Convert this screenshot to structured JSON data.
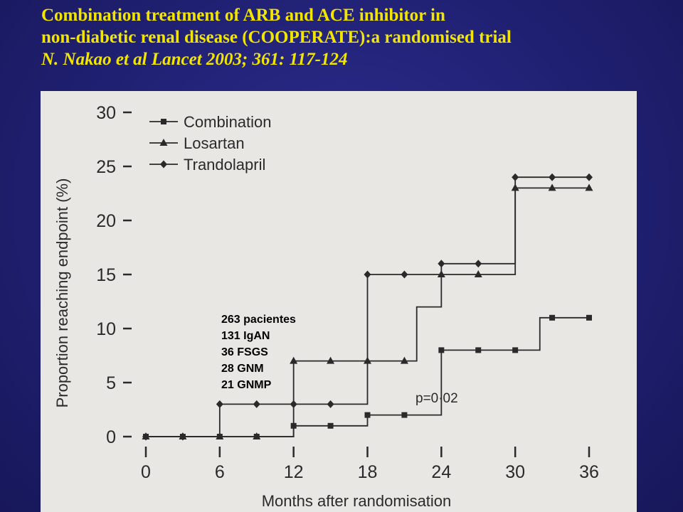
{
  "title": {
    "line1": "Combination treatment of ARB and ACE inhibitor in",
    "line2": "non-diabetic renal disease (COOPERATE):a randomised trial",
    "citation": "N. Nakao et al    Lancet 2003; 361: 117-124"
  },
  "annotation": {
    "lines": [
      "263 pacientes",
      "131 IgAN",
      "36 FSGS",
      "28 GNM",
      "21 GNMP"
    ]
  },
  "chart_data": {
    "type": "line",
    "step": true,
    "ylabel": "Proportion reaching endpoint (%)",
    "xlabel": "Months after randomisation",
    "xlim": [
      0,
      36
    ],
    "ylim": [
      0,
      30
    ],
    "xticks": [
      0,
      6,
      12,
      18,
      24,
      30,
      36
    ],
    "yticks": [
      0,
      5,
      10,
      15,
      20,
      25,
      30
    ],
    "xtick_labels": [
      "0",
      "6",
      "12",
      "18",
      "24",
      "30",
      "36"
    ],
    "ytick_labels": [
      "0",
      "5",
      "10",
      "15",
      "20",
      "25",
      "30"
    ],
    "annotation": "p=0·02",
    "legend_position": "top-left",
    "series": [
      {
        "name": "Combination",
        "marker": "square",
        "steps": [
          [
            0,
            0
          ],
          [
            6,
            0
          ],
          [
            12,
            1
          ],
          [
            18,
            2
          ],
          [
            20,
            2
          ],
          [
            24,
            8
          ],
          [
            30,
            8
          ],
          [
            32,
            11
          ],
          [
            36,
            11
          ]
        ],
        "marker_x": [
          0,
          3,
          6,
          9,
          12,
          15,
          18,
          21,
          24,
          27,
          30,
          33,
          36
        ]
      },
      {
        "name": "Losartan",
        "marker": "triangle",
        "steps": [
          [
            0,
            0
          ],
          [
            6,
            0
          ],
          [
            12,
            7
          ],
          [
            18,
            7
          ],
          [
            22,
            12
          ],
          [
            24,
            15
          ],
          [
            30,
            23
          ],
          [
            36,
            23
          ]
        ],
        "marker_x": [
          0,
          3,
          6,
          9,
          12,
          15,
          18,
          21,
          24,
          27,
          30,
          33,
          36
        ]
      },
      {
        "name": "Trandolapril",
        "marker": "diamond",
        "steps": [
          [
            0,
            0
          ],
          [
            6,
            3
          ],
          [
            12,
            3
          ],
          [
            18,
            15
          ],
          [
            24,
            16
          ],
          [
            30,
            24
          ],
          [
            36,
            24
          ]
        ],
        "marker_x": [
          0,
          3,
          6,
          9,
          12,
          15,
          18,
          21,
          24,
          27,
          30,
          33,
          36
        ]
      }
    ]
  }
}
